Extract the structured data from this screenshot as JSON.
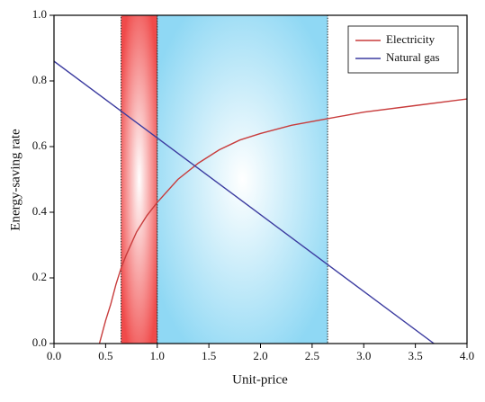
{
  "chart_data": {
    "type": "line",
    "x_label": "Unit-price",
    "y_label": "Energy-saving rate",
    "xlim": [
      0,
      4
    ],
    "ylim": [
      0,
      1
    ],
    "xticks": [
      {
        "value": 0,
        "label": "0.0"
      },
      {
        "value": 0.5,
        "label": "0.5"
      },
      {
        "value": 1,
        "label": "1.0"
      },
      {
        "value": 1.5,
        "label": "1.5"
      },
      {
        "value": 2,
        "label": "2.0"
      },
      {
        "value": 2.5,
        "label": "2.5"
      },
      {
        "value": 3,
        "label": "3.0"
      },
      {
        "value": 3.5,
        "label": "3.5"
      },
      {
        "value": 4,
        "label": "4.0"
      }
    ],
    "yticks": [
      {
        "value": 0,
        "label": "0.0"
      },
      {
        "value": 0.2,
        "label": "0.2"
      },
      {
        "value": 0.4,
        "label": "0.4"
      },
      {
        "value": 0.6,
        "label": "0.6"
      },
      {
        "value": 0.8,
        "label": "0.8"
      },
      {
        "value": 1,
        "label": "1.0"
      }
    ],
    "bands": [
      {
        "range": [
          0.65,
          1.0
        ],
        "color": "#f04a4a"
      },
      {
        "range": [
          1.0,
          2.65
        ],
        "color": "#8fd8f4"
      }
    ],
    "legend": "top-right",
    "series": [
      {
        "name": "Electricity",
        "color": "#c83c3c",
        "x": [
          0.44,
          0.5,
          0.55,
          0.6,
          0.65,
          0.7,
          0.8,
          0.9,
          1.0,
          1.2,
          1.4,
          1.6,
          1.8,
          2.0,
          2.3,
          2.65,
          3.0,
          3.5,
          4.0
        ],
        "values": [
          0,
          0.07,
          0.12,
          0.18,
          0.23,
          0.27,
          0.34,
          0.39,
          0.43,
          0.5,
          0.55,
          0.59,
          0.62,
          0.64,
          0.665,
          0.685,
          0.705,
          0.725,
          0.745
        ]
      },
      {
        "name": "Natural gas",
        "color": "#3c3ca0",
        "x": [
          0,
          3.68
        ],
        "values": [
          0.86,
          0
        ]
      }
    ]
  }
}
